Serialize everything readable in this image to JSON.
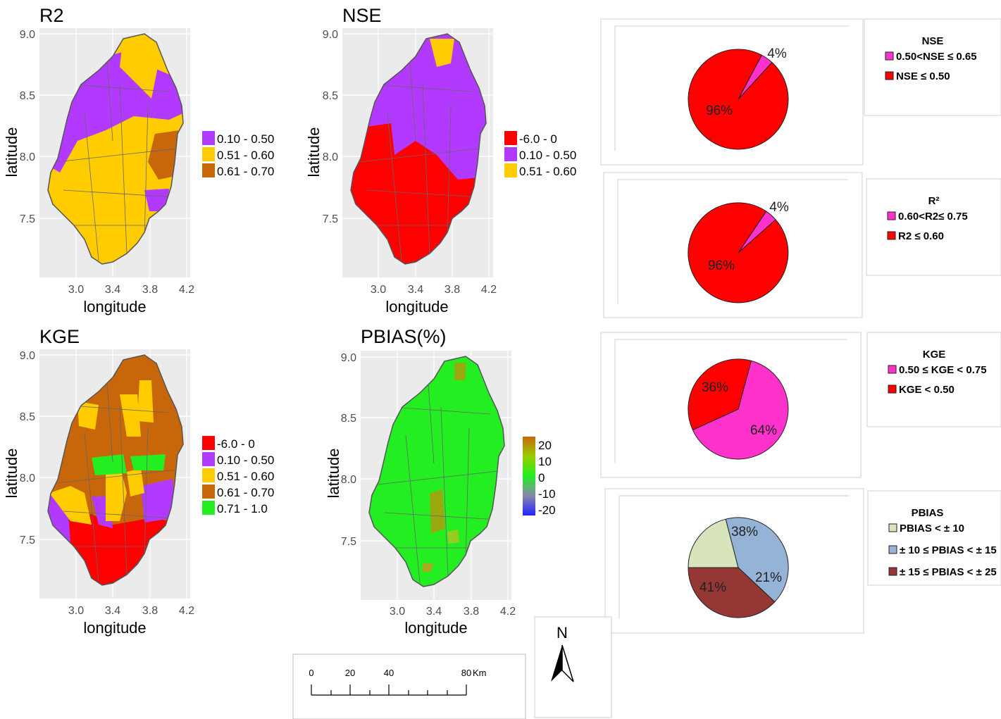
{
  "colors": {
    "red": "#ff0000",
    "purple": "#b23aff",
    "yellow": "#ffcc00",
    "brown": "#c8670a",
    "green": "#22ee22",
    "olive": "#99aa10",
    "pink": "#ff33cc",
    "panel": "#ebebeb",
    "pb_light": "#d8e4bc",
    "pb_blue": "#95b3d7",
    "pb_dark": "#953735"
  },
  "maps": [
    {
      "title": "R2",
      "xlabel": "longitude",
      "ylabel": "latitude",
      "x_ticks": [
        "3.0",
        "3.4",
        "3.8",
        "4.2"
      ],
      "y_ticks": [
        "9.0",
        "8.5",
        "8.0",
        "7.5"
      ],
      "legend": [
        {
          "label": "0.10 - 0.50",
          "color": "#b23aff"
        },
        {
          "label": "0.51 - 0.60",
          "color": "#ffcc00"
        },
        {
          "label": "0.61 - 0.70",
          "color": "#c8670a"
        }
      ]
    },
    {
      "title": "NSE",
      "xlabel": "longitude",
      "ylabel": "latitude",
      "x_ticks": [
        "3.0",
        "3.4",
        "3.8",
        "4.2"
      ],
      "y_ticks": [
        "9.0",
        "8.5",
        "8.0",
        "7.5"
      ],
      "legend": [
        {
          "label": "-6.0 - 0",
          "color": "#ff0000"
        },
        {
          "label": "0.10 - 0.50",
          "color": "#b23aff"
        },
        {
          "label": "0.51 - 0.60",
          "color": "#ffcc00"
        }
      ]
    },
    {
      "title": "KGE",
      "xlabel": "longitude",
      "ylabel": "latitude",
      "x_ticks": [
        "3.0",
        "3.4",
        "3.8",
        "4.2"
      ],
      "y_ticks": [
        "9.0",
        "8.5",
        "8.0",
        "7.5"
      ],
      "legend": [
        {
          "label": "-6.0 - 0",
          "color": "#ff0000"
        },
        {
          "label": "0.10 - 0.50",
          "color": "#b23aff"
        },
        {
          "label": "0.51 - 0.60",
          "color": "#ffcc00"
        },
        {
          "label": "0.61 - 0.70",
          "color": "#c8670a"
        },
        {
          "label": "0.71 - 1.0",
          "color": "#22ee22"
        }
      ]
    },
    {
      "title": "PBIAS(%)",
      "xlabel": "longitude",
      "ylabel": "latitude",
      "x_ticks": [
        "3.0",
        "3.4",
        "3.8",
        "4.2"
      ],
      "y_ticks": [
        "9.0",
        "8.5",
        "8.0",
        "7.5"
      ],
      "colorbar_ticks": [
        "20",
        "10",
        "0",
        "-10",
        "-20"
      ]
    }
  ],
  "pies": [
    {
      "title": "NSE",
      "slices": [
        {
          "label": "4%",
          "value": 4,
          "color": "#ff33cc"
        },
        {
          "label": "96%",
          "value": 96,
          "color": "#ff0000"
        }
      ],
      "legend": [
        "0.50<NSE ≤ 0.65",
        "NSE ≤ 0.50"
      ]
    },
    {
      "title": "R²",
      "slices": [
        {
          "label": "4%",
          "value": 4,
          "color": "#ff33cc"
        },
        {
          "label": "96%",
          "value": 96,
          "color": "#ff0000"
        }
      ],
      "legend": [
        "0.60<R2≤ 0.75",
        "R2 ≤  0.60"
      ]
    },
    {
      "title": "KGE",
      "slices": [
        {
          "label": "64%",
          "value": 64,
          "color": "#ff33cc"
        },
        {
          "label": "36%",
          "value": 36,
          "color": "#ff0000"
        }
      ],
      "legend": [
        "0.50 ≤ KGE < 0.75",
        "KGE < 0.50"
      ]
    },
    {
      "title": "PBIAS",
      "slices": [
        {
          "label": "21%",
          "value": 21,
          "color": "#d8e4bc"
        },
        {
          "label": "41%",
          "value": 41,
          "color": "#95b3d7"
        },
        {
          "label": "38%",
          "value": 38,
          "color": "#953735"
        }
      ],
      "legend": [
        "PBIAS < ± 10",
        "± 10 ≤ PBIAS < ± 15",
        "± 15 ≤ PBIAS < ± 25"
      ]
    }
  ],
  "scale_bar": {
    "labels": [
      "0",
      "20",
      "40",
      "80"
    ],
    "unit": "Km"
  },
  "north_arrow": {
    "label": "N"
  }
}
